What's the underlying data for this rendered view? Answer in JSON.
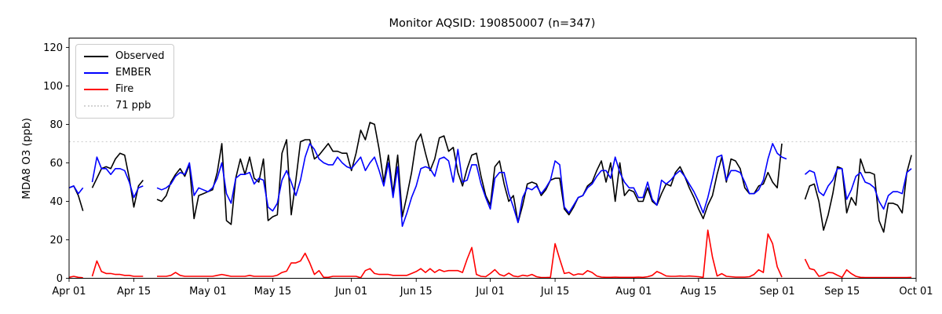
{
  "chart_data": {
    "type": "line",
    "title": "Monitor AQSID: 190850007 (n=347)",
    "xlabel": "",
    "ylabel": "MDA8 O3 (ppb)",
    "ylim": [
      0,
      125
    ],
    "grid": false,
    "legend_position": "upper-left",
    "x_unit": "days since Apr 01",
    "x_ticks": [
      {
        "label": "Apr 01",
        "day": 0
      },
      {
        "label": "Apr 15",
        "day": 14
      },
      {
        "label": "May 01",
        "day": 30
      },
      {
        "label": "May 15",
        "day": 44
      },
      {
        "label": "Jun 01",
        "day": 61
      },
      {
        "label": "Jun 15",
        "day": 75
      },
      {
        "label": "Jul 01",
        "day": 91
      },
      {
        "label": "Jul 15",
        "day": 105
      },
      {
        "label": "Aug 01",
        "day": 122
      },
      {
        "label": "Aug 15",
        "day": 136
      },
      {
        "label": "Sep 01",
        "day": 153
      },
      {
        "label": "Sep 15",
        "day": 167
      },
      {
        "label": "Oct 01",
        "day": 183
      }
    ],
    "y_ticks": [
      0,
      20,
      40,
      60,
      80,
      100,
      120
    ],
    "threshold": {
      "label": "71 ppb",
      "value": 71,
      "color": "#d3d3d3",
      "style": "dotted"
    },
    "series": [
      {
        "name": "Observed",
        "color": "#000000",
        "style": "solid",
        "values": [
          47,
          48,
          43,
          35,
          null,
          47,
          52,
          57,
          58,
          57,
          62,
          65,
          64,
          52,
          37,
          48,
          51,
          null,
          null,
          41,
          40,
          43,
          50,
          54,
          57,
          53,
          59,
          31,
          43,
          44,
          45,
          46,
          55,
          70,
          30,
          28,
          52,
          62,
          54,
          63,
          52,
          50,
          62,
          30,
          32,
          33,
          65,
          72,
          33,
          51,
          71,
          72,
          72,
          62,
          64,
          67,
          70,
          66,
          66,
          65,
          65,
          56,
          65,
          77,
          72,
          81,
          80,
          67,
          50,
          64,
          44,
          64,
          32,
          43,
          55,
          71,
          75,
          65,
          56,
          62,
          73,
          74,
          66,
          68,
          55,
          48,
          57,
          64,
          65,
          53,
          43,
          38,
          58,
          61,
          49,
          40,
          43,
          29,
          38,
          49,
          50,
          49,
          43,
          46,
          51,
          52,
          52,
          36,
          33,
          37,
          42,
          43,
          48,
          50,
          56,
          61,
          50,
          60,
          40,
          60,
          43,
          46,
          45,
          40,
          40,
          47,
          40,
          38,
          44,
          49,
          48,
          55,
          58,
          53,
          47,
          42,
          36,
          31,
          38,
          43,
          54,
          63,
          50,
          62,
          61,
          57,
          47,
          44,
          44,
          48,
          49,
          55,
          50,
          47,
          70,
          null,
          null,
          null,
          null,
          41,
          48,
          49,
          40,
          25,
          33,
          44,
          58,
          57,
          34,
          42,
          38,
          62,
          55,
          55,
          54,
          30,
          24,
          39,
          39,
          38,
          34,
          55,
          64
        ]
      },
      {
        "name": "EMBER",
        "color": "#0000ff",
        "style": "solid",
        "values": [
          47,
          48,
          44,
          47,
          null,
          50,
          63,
          57,
          57,
          54,
          57,
          57,
          56,
          50,
          42,
          47,
          48,
          null,
          null,
          47,
          46,
          47,
          49,
          53,
          55,
          54,
          60,
          43,
          47,
          46,
          45,
          47,
          52,
          60,
          44,
          39,
          52,
          54,
          54,
          55,
          49,
          52,
          51,
          37,
          35,
          39,
          51,
          56,
          50,
          43,
          51,
          63,
          70,
          67,
          62,
          60,
          59,
          59,
          63,
          60,
          58,
          57,
          60,
          63,
          56,
          60,
          63,
          56,
          48,
          60,
          42,
          58,
          27,
          34,
          42,
          48,
          57,
          58,
          57,
          53,
          62,
          63,
          61,
          50,
          67,
          50,
          51,
          59,
          59,
          49,
          42,
          36,
          52,
          55,
          55,
          44,
          37,
          29,
          42,
          47,
          46,
          48,
          44,
          47,
          51,
          61,
          59,
          37,
          34,
          38,
          42,
          43,
          47,
          49,
          53,
          56,
          56,
          52,
          63,
          55,
          50,
          47,
          47,
          42,
          42,
          50,
          41,
          38,
          51,
          49,
          51,
          54,
          56,
          53,
          49,
          45,
          40,
          34,
          42,
          52,
          63,
          64,
          51,
          56,
          56,
          55,
          50,
          44,
          44,
          46,
          51,
          62,
          70,
          65,
          63,
          62,
          null,
          null,
          null,
          54,
          56,
          55,
          45,
          43,
          48,
          51,
          57,
          57,
          41,
          46,
          53,
          55,
          50,
          49,
          47,
          40,
          36,
          43,
          45,
          45,
          44,
          55,
          57
        ]
      },
      {
        "name": "Fire",
        "color": "#ff0000",
        "style": "solid",
        "values": [
          0.5,
          1,
          0.5,
          0.3,
          null,
          1,
          9,
          3.5,
          2.5,
          2.5,
          2,
          2,
          1.5,
          1.5,
          1,
          1,
          1,
          null,
          null,
          1,
          1,
          1,
          1.5,
          3,
          1.5,
          1,
          1,
          1,
          1,
          1,
          1,
          1,
          1.5,
          2,
          1.5,
          1,
          1,
          1,
          1,
          1.5,
          1,
          1,
          1,
          1,
          1,
          1.6,
          3,
          3.7,
          8,
          8,
          9,
          13,
          8,
          2,
          4,
          0.5,
          0.5,
          1,
          1,
          1,
          1,
          1,
          1,
          0.3,
          4,
          5,
          2.5,
          2,
          2,
          2,
          1.5,
          1.5,
          1.5,
          1.5,
          2.5,
          3.5,
          5,
          3,
          5,
          3,
          4.5,
          3.5,
          4,
          4,
          4,
          3,
          10,
          16,
          2,
          1,
          0.8,
          2.5,
          4.5,
          2,
          1.2,
          2.7,
          1.2,
          0.8,
          1.6,
          1.2,
          2,
          0.8,
          0.4,
          0.4,
          0.5,
          18,
          10,
          2.5,
          3,
          1.6,
          2.3,
          2,
          4,
          3,
          1.2,
          0.6,
          0.5,
          0.5,
          0.6,
          0.5,
          0.5,
          0.5,
          0.5,
          0.6,
          0.5,
          0.8,
          1.5,
          3.5,
          2.5,
          1.2,
          1,
          1,
          1.2,
          1,
          1.2,
          1,
          0.8,
          0.5,
          25,
          11,
          1.2,
          2.4,
          1,
          0.8,
          0.6,
          0.6,
          0.6,
          0.8,
          2,
          4.4,
          3,
          23,
          18,
          6,
          0.6,
          null,
          null,
          null,
          null,
          10,
          5,
          4.4,
          1,
          1.6,
          3,
          2.8,
          1.6,
          0.5,
          4.4,
          2.4,
          1,
          0.5,
          0.4,
          0.4,
          0.4,
          0.4,
          0.4,
          0.4,
          0.4,
          0.4,
          0.4,
          0.4,
          0.5
        ]
      }
    ]
  }
}
